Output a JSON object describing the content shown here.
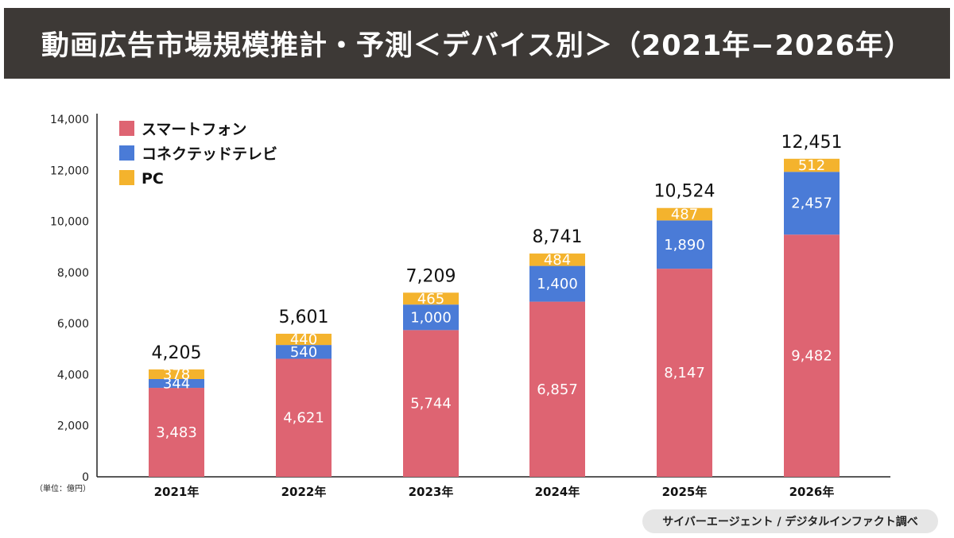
{
  "title": "動画広告市場規模推計・予測＜デバイス別＞（2021年−2026年）",
  "source": "サイバーエージェント / デジタルインファクト調べ",
  "colors": {
    "smartphone": "#de6472",
    "ctv": "#4a7bd7",
    "pc": "#f4b32d",
    "title_bg": "#3d3936",
    "axis": "#222222"
  },
  "chart_data": {
    "type": "bar",
    "stacked": true,
    "unit_label": "（単位：億円）",
    "categories": [
      "2021年",
      "2022年",
      "2023年",
      "2024年",
      "2025年",
      "2026年"
    ],
    "series": [
      {
        "name": "スマートフォン",
        "color": "#de6472",
        "values": [
          3483,
          4621,
          5744,
          6857,
          8147,
          9482
        ]
      },
      {
        "name": "コネクテッドテレビ",
        "color": "#4a7bd7",
        "values": [
          344,
          540,
          1000,
          1400,
          1890,
          2457
        ]
      },
      {
        "name": "PC",
        "color": "#f4b32d",
        "values": [
          378,
          440,
          465,
          484,
          487,
          512
        ]
      }
    ],
    "totals": [
      4205,
      5601,
      7209,
      8741,
      10524,
      12451
    ],
    "ylim": [
      0,
      14000
    ],
    "yticks": [
      0,
      2000,
      4000,
      6000,
      8000,
      10000,
      12000,
      14000
    ],
    "legend_position": "top-left",
    "grid": false
  }
}
